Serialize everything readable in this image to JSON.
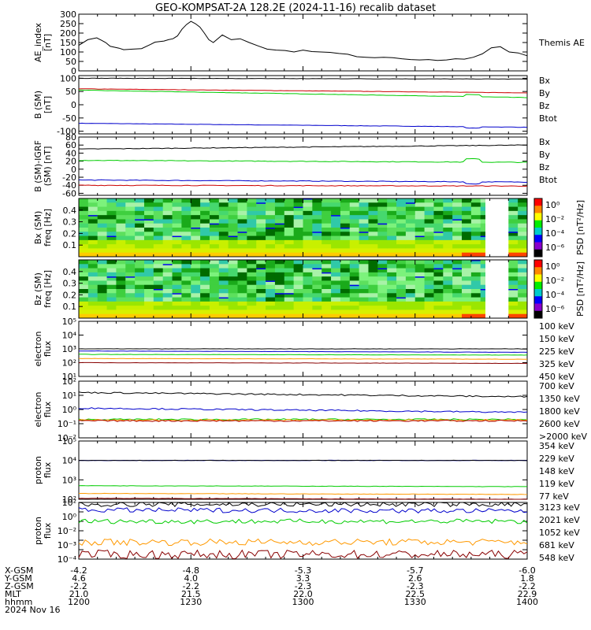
{
  "title": "GEO-KOMPSAT-2A 128.2E (2024-11-16) recalib dataset",
  "colors": {
    "black": "#000000",
    "red": "#cc0000",
    "green": "#00cc00",
    "blue": "#0000cc",
    "orange": "#ff9900",
    "maroon": "#880000",
    "darkred": "#aa0000"
  },
  "chart_data": [
    {
      "type": "line",
      "panel": "ae",
      "ylabel": "AE_index [nT]",
      "ylim": [
        0,
        300
      ],
      "yticks": [
        "0",
        "50",
        "100",
        "150",
        "200",
        "250",
        "300"
      ],
      "series": [
        {
          "name": "Themis AE",
          "color": "black",
          "x": [
            0,
            2,
            4,
            6,
            7,
            9,
            10,
            12,
            14,
            16,
            17,
            19,
            20,
            21,
            22,
            23,
            24,
            25,
            26,
            27,
            28,
            29,
            30,
            32,
            34,
            36,
            38,
            40,
            42,
            44,
            46,
            48,
            50,
            52,
            54,
            56,
            58,
            60,
            62,
            64,
            66,
            68,
            70,
            72,
            74,
            76,
            78,
            80,
            82,
            84,
            86,
            88,
            90,
            92,
            94,
            96,
            98,
            100
          ],
          "values": [
            135,
            165,
            175,
            150,
            130,
            120,
            112,
            115,
            118,
            140,
            152,
            158,
            165,
            170,
            185,
            220,
            245,
            262,
            250,
            232,
            200,
            165,
            150,
            190,
            165,
            170,
            150,
            132,
            115,
            110,
            108,
            100,
            110,
            102,
            100,
            98,
            92,
            88,
            75,
            72,
            70,
            72,
            70,
            64,
            60,
            58,
            60,
            55,
            58,
            64,
            62,
            72,
            90,
            122,
            128,
            100,
            95,
            80
          ]
        }
      ]
    },
    {
      "type": "line",
      "panel": "b_sm",
      "ylabel": "B (SM) [nT]",
      "ylim": [
        -110,
        110
      ],
      "yticks": [
        "-100",
        "-50",
        "0",
        "50",
        "100"
      ],
      "series": [
        {
          "name": "Bx",
          "color": "blue",
          "x": [
            0,
            100
          ],
          "values": [
            -70,
            -85
          ]
        },
        {
          "name": "By",
          "color": "green",
          "x": [
            0,
            100
          ],
          "values": [
            55,
            27
          ]
        },
        {
          "name": "Bz",
          "color": "red",
          "x": [
            0,
            100
          ],
          "values": [
            60,
            45
          ]
        },
        {
          "name": "Btot",
          "color": "black",
          "x": [
            0,
            100
          ],
          "values": [
            100,
            97
          ]
        }
      ]
    },
    {
      "type": "line",
      "panel": "b_igrf",
      "ylabel": "B (SM)-IGRF (SM) [nT]",
      "ylim": [
        -65,
        80
      ],
      "yticks": [
        "-60",
        "-40",
        "-20",
        "0",
        "20",
        "40",
        "60",
        "80"
      ],
      "series": [
        {
          "name": "Bx",
          "color": "blue",
          "x": [
            0,
            100
          ],
          "values": [
            -27,
            -32
          ]
        },
        {
          "name": "By",
          "color": "green",
          "x": [
            0,
            100
          ],
          "values": [
            22,
            17
          ]
        },
        {
          "name": "Bz",
          "color": "red",
          "x": [
            0,
            100
          ],
          "values": [
            -40,
            -42
          ]
        },
        {
          "name": "Btot",
          "color": "black",
          "x": [
            0,
            100
          ],
          "values": [
            50,
            60
          ]
        }
      ]
    },
    {
      "type": "heatmap",
      "panel": "bx_psd",
      "ylabel": "Bx (SM) freq [Hz]",
      "ylim": [
        0,
        0.5
      ],
      "yticks": [
        "0.1",
        "0.2",
        "0.3",
        "0.4"
      ],
      "colorbar": {
        "label": "PSD [nT²/Hz]",
        "ticks": [
          "10⁰",
          "10⁻²",
          "10⁻⁴",
          "10⁻⁶"
        ]
      }
    },
    {
      "type": "heatmap",
      "panel": "bz_psd",
      "ylabel": "Bz (SM) freq [Hz]",
      "ylim": [
        0,
        0.5
      ],
      "yticks": [
        "0.1",
        "0.2",
        "0.3",
        "0.4"
      ],
      "colorbar": {
        "label": "PSD [nT²/Hz]",
        "ticks": [
          "10⁰",
          "10⁻²",
          "10⁻⁴",
          "10⁻⁶"
        ]
      }
    },
    {
      "type": "line",
      "panel": "electron_low",
      "log": true,
      "ylabel": "electron flux",
      "ylim_exp": [
        1,
        5
      ],
      "yticks": [
        "10¹",
        "10²",
        "10³",
        "10⁴",
        "10⁵"
      ],
      "series": [
        {
          "name": "100 keV",
          "color": "black",
          "x": [
            0,
            100
          ],
          "values": [
            3.0,
            3.0
          ]
        },
        {
          "name": "150 keV",
          "color": "blue",
          "x": [
            0,
            100
          ],
          "values": [
            2.85,
            2.75
          ]
        },
        {
          "name": "225 keV",
          "color": "green",
          "x": [
            0,
            100
          ],
          "values": [
            2.6,
            2.55
          ]
        },
        {
          "name": "325 keV",
          "color": "orange",
          "x": [
            0,
            100
          ],
          "values": [
            2.3,
            2.25
          ]
        },
        {
          "name": "450 keV",
          "color": "maroon",
          "x": [
            0,
            100
          ],
          "values": [
            2.0,
            1.95
          ]
        }
      ]
    },
    {
      "type": "line",
      "panel": "electron_high",
      "log": true,
      "ylabel": "electron flux",
      "ylim_exp": [
        -2,
        2
      ],
      "yticks": [
        "10⁻²",
        "10⁻¹",
        "10⁰",
        "10¹",
        "10²"
      ],
      "series": [
        {
          "name": "700 keV",
          "color": "black",
          "x": [
            0,
            100
          ],
          "values": [
            1.2,
            0.9
          ]
        },
        {
          "name": "1350 keV",
          "color": "blue",
          "x": [
            0,
            100
          ],
          "values": [
            0.1,
            -0.2
          ]
        },
        {
          "name": "1800 keV",
          "color": "green",
          "x": [
            0,
            100
          ],
          "values": [
            -0.7,
            -0.7
          ]
        },
        {
          "name": "2600 keV",
          "color": "orange",
          "x": [
            0,
            100
          ],
          "values": [
            -0.75,
            -0.75
          ]
        },
        {
          "name": ">2000 keV",
          "color": "darkred",
          "x": [
            0,
            100
          ],
          "values": [
            -0.8,
            -0.8
          ]
        }
      ]
    },
    {
      "type": "line",
      "panel": "proton_low",
      "log": true,
      "ylabel": "proton flux",
      "ylim_exp": [
        2,
        5
      ],
      "yticks": [
        "10²",
        "10³",
        "10⁴",
        "10⁵"
      ],
      "series": [
        {
          "name": "354 keV",
          "color": "maroon",
          "x": [
            0,
            100
          ],
          "values": [
            2.05,
            2.0
          ]
        },
        {
          "name": "229 keV",
          "color": "orange",
          "x": [
            0,
            100
          ],
          "values": [
            2.3,
            2.25
          ]
        },
        {
          "name": "148 keV",
          "color": "green",
          "x": [
            0,
            100
          ],
          "values": [
            2.7,
            2.65
          ]
        },
        {
          "name": "119 keV",
          "color": "blue",
          "x": [
            0,
            100
          ],
          "values": [
            4.0,
            4.0
          ]
        },
        {
          "name": "77 keV",
          "color": "black",
          "x": [
            0,
            100
          ],
          "values": [
            4.0,
            4.0
          ]
        }
      ]
    },
    {
      "type": "line",
      "panel": "proton_high",
      "log": true,
      "ylabel": "proton flux",
      "ylim_exp": [
        -4,
        2
      ],
      "yticks": [
        "10⁻⁴",
        "10⁻³",
        "10⁻²",
        "10⁰",
        "10²"
      ],
      "series": [
        {
          "name": "3123 keV",
          "color": "maroon",
          "x": [
            0,
            100
          ],
          "values": [
            -3.5,
            -3.5
          ]
        },
        {
          "name": "2021 keV",
          "color": "orange",
          "x": [
            0,
            100
          ],
          "values": [
            -2.2,
            -2.2
          ]
        },
        {
          "name": "1052 keV",
          "color": "green",
          "x": [
            0,
            100
          ],
          "values": [
            0.0,
            0.0
          ]
        },
        {
          "name": "681 keV",
          "color": "blue",
          "x": [
            0,
            100
          ],
          "values": [
            1.2,
            1.1
          ]
        },
        {
          "name": "548 keV",
          "color": "black",
          "x": [
            0,
            100
          ],
          "values": [
            1.8,
            1.8
          ]
        }
      ]
    }
  ],
  "footer": {
    "row_labels": [
      "X-GSM",
      "Y-GSM",
      "Z-GSM",
      "MLT",
      "hhmm",
      "2024 Nov 16"
    ],
    "columns": [
      [
        "-4.2",
        "4.6",
        "-2.2",
        "21.0",
        "1200"
      ],
      [
        "-4.8",
        "4.0",
        "-2.2",
        "21.5",
        "1230"
      ],
      [
        "-5.3",
        "3.3",
        "-2.3",
        "22.0",
        "1300"
      ],
      [
        "-5.7",
        "2.6",
        "-2.3",
        "22.5",
        "1330"
      ],
      [
        "-6.0",
        "1.8",
        "-2.2",
        "22.9",
        "1400"
      ]
    ]
  }
}
